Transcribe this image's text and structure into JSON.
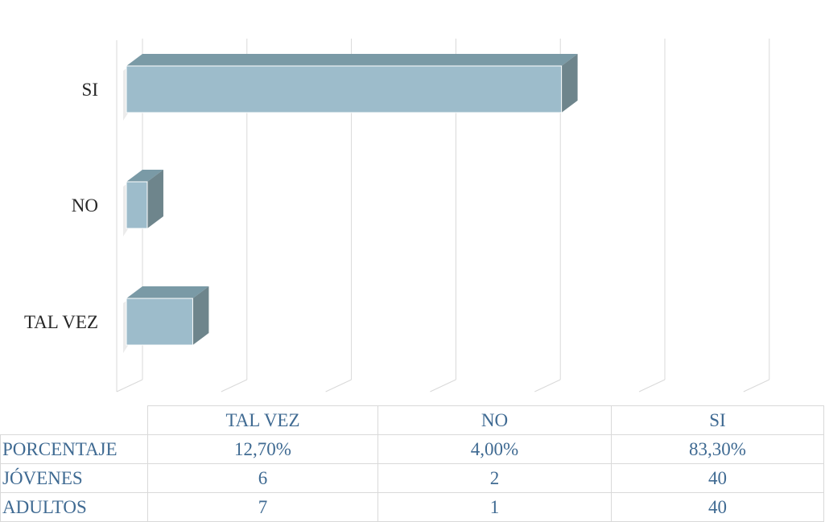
{
  "chart_data": {
    "type": "bar",
    "orientation": "horizontal",
    "style": "3d",
    "categories": [
      "TAL VEZ",
      "NO",
      "SI"
    ],
    "series": [
      {
        "values": [
          12.7,
          4.0,
          83.3
        ]
      }
    ],
    "xlim": [
      0,
      100
    ],
    "grid": true,
    "bar_color": "#9dbccb",
    "bar_top_color": "#7a9aa6",
    "bar_side_color": "#6e858c"
  },
  "table": {
    "columns": [
      "TAL VEZ",
      "NO",
      "SI"
    ],
    "rows": [
      {
        "label": "PORCENTAJE",
        "values": [
          "12,70%",
          "4,00%",
          "83,30%"
        ]
      },
      {
        "label": "JÓVENES",
        "values": [
          "6",
          "2",
          "40"
        ]
      },
      {
        "label": "ADULTOS",
        "values": [
          "7",
          "1",
          "40"
        ]
      }
    ]
  }
}
